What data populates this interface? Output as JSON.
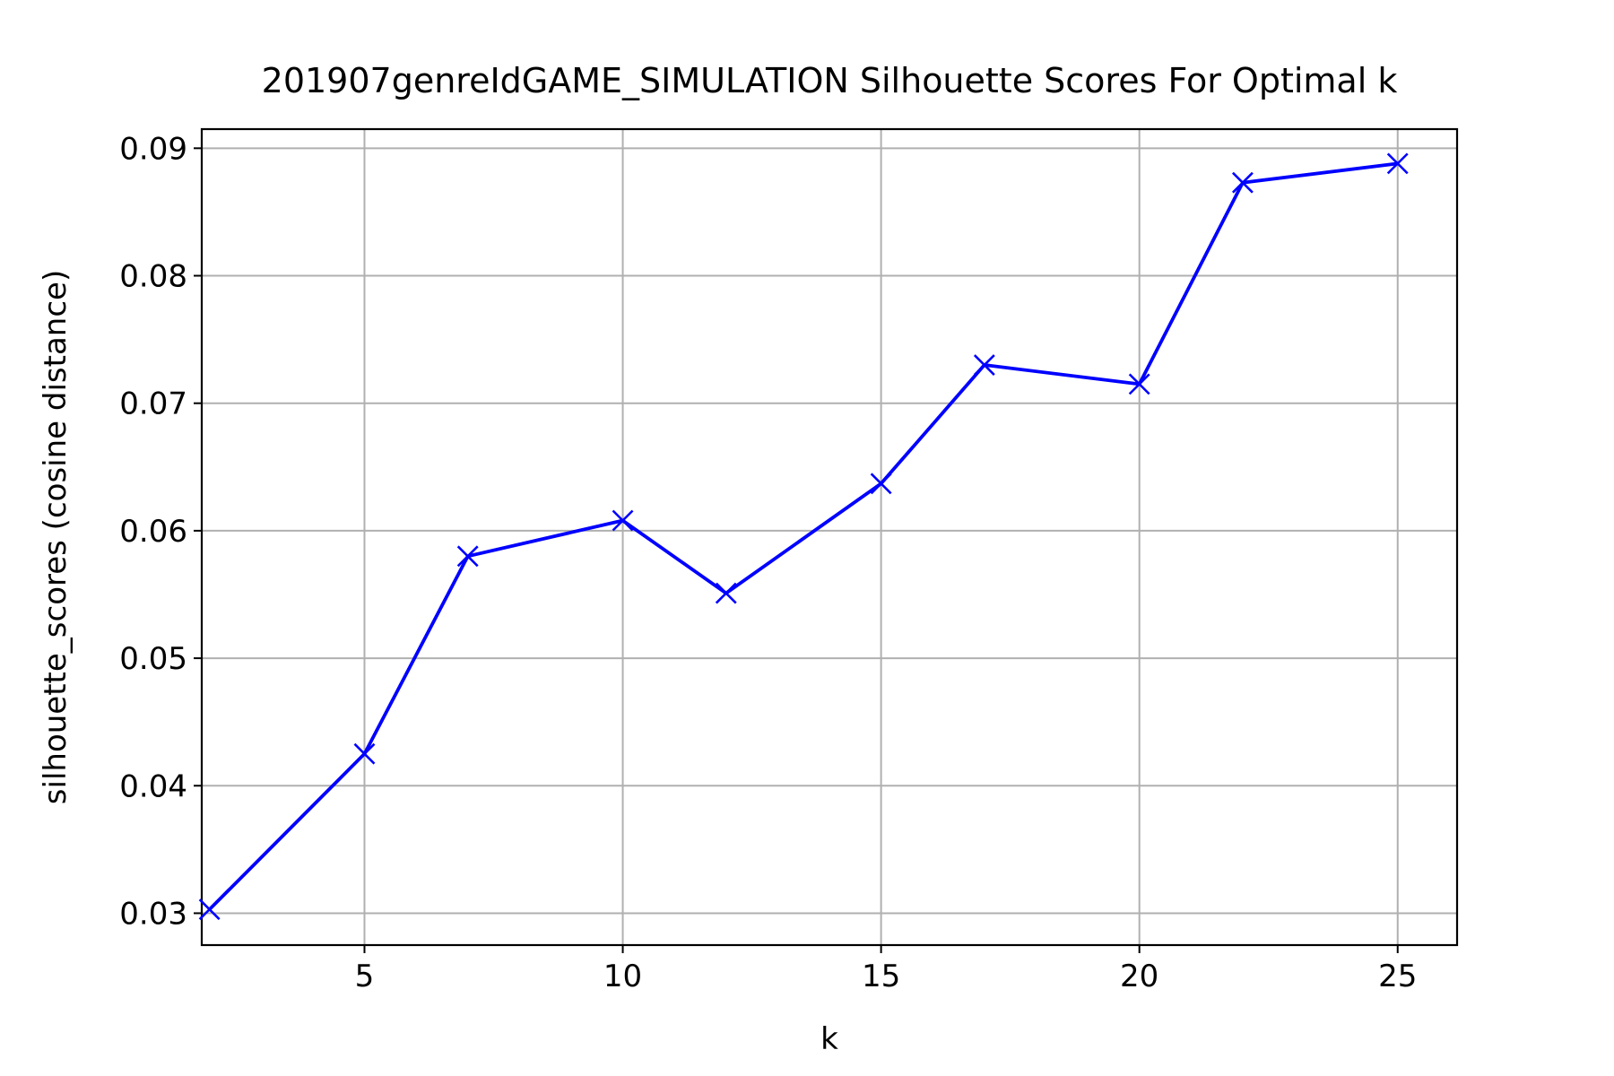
{
  "chart_data": {
    "type": "line",
    "title": "201907genreIdGAME_SIMULATION Silhouette Scores For Optimal k",
    "xlabel": "k",
    "ylabel": "silhouette_scores (cosine distance)",
    "xlim": [
      1.85,
      26.15
    ],
    "ylim": [
      0.0275,
      0.0915
    ],
    "xticks": [
      5,
      10,
      15,
      20,
      25
    ],
    "xtick_labels": [
      "5",
      "10",
      "15",
      "20",
      "25"
    ],
    "yticks": [
      0.03,
      0.04,
      0.05,
      0.06,
      0.07,
      0.08,
      0.09
    ],
    "ytick_labels": [
      "0.03",
      "0.04",
      "0.05",
      "0.06",
      "0.07",
      "0.08",
      "0.09"
    ],
    "grid": true,
    "marker": "x",
    "color": "#0000ff",
    "series": [
      {
        "x": [
          2,
          5,
          7,
          10,
          12,
          15,
          17,
          20,
          22,
          25
        ],
        "values": [
          0.0303,
          0.0425,
          0.058,
          0.0608,
          0.0551,
          0.0637,
          0.073,
          0.0715,
          0.0873,
          0.0888
        ]
      }
    ]
  }
}
